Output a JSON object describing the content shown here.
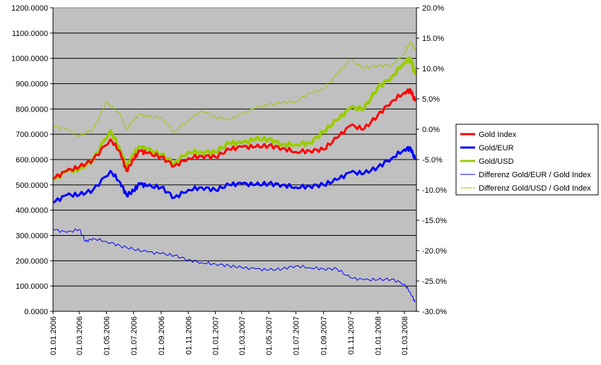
{
  "chart_data": {
    "type": "line",
    "title": "",
    "xlabel": "",
    "ylabel": "",
    "y2label": "",
    "ylim": [
      0,
      1200
    ],
    "y2lim": [
      -30,
      20
    ],
    "grid": true,
    "legend_position": "right",
    "x_ticks": [
      "01.01.2006",
      "01.03.2006",
      "01.05.2006",
      "01.07.2006",
      "01.09.2006",
      "01.11.2006",
      "01.01.2007",
      "01.03.2007",
      "01.05.2007",
      "01.07.2007",
      "01.09.2007",
      "01.11.2007",
      "01.01.2008",
      "01.03.2008"
    ],
    "y_ticks": [
      "0.0000",
      "100.0000",
      "200.0000",
      "300.0000",
      "400.0000",
      "500.0000",
      "600.0000",
      "700.0000",
      "800.0000",
      "900.0000",
      "1000.0000",
      "1100.0000",
      "1200.0000"
    ],
    "y2_ticks": [
      "-30.0%",
      "-25.0%",
      "-20.0%",
      "-15.0%",
      "-10.0%",
      "-5.0%",
      "0.0%",
      "5.0%",
      "10.0%",
      "15.0%",
      "20.0%"
    ],
    "series": [
      {
        "name": "Gold Index",
        "axis": "left",
        "color": "#ff0000",
        "width": 3,
        "points": [
          [
            "2006-01-01",
            525
          ],
          [
            "2006-02-01",
            555
          ],
          [
            "2006-03-01",
            570
          ],
          [
            "2006-04-01",
            600
          ],
          [
            "2006-05-10",
            680
          ],
          [
            "2006-06-01",
            630
          ],
          [
            "2006-06-15",
            555
          ],
          [
            "2006-07-01",
            600
          ],
          [
            "2006-07-15",
            635
          ],
          [
            "2006-08-01",
            625
          ],
          [
            "2006-09-01",
            610
          ],
          [
            "2006-10-01",
            575
          ],
          [
            "2006-11-01",
            605
          ],
          [
            "2006-12-01",
            615
          ],
          [
            "2007-01-01",
            610
          ],
          [
            "2007-02-01",
            640
          ],
          [
            "2007-03-01",
            650
          ],
          [
            "2007-04-01",
            650
          ],
          [
            "2007-05-01",
            655
          ],
          [
            "2007-06-01",
            645
          ],
          [
            "2007-07-01",
            630
          ],
          [
            "2007-08-01",
            635
          ],
          [
            "2007-09-01",
            640
          ],
          [
            "2007-10-01",
            685
          ],
          [
            "2007-11-01",
            735
          ],
          [
            "2007-12-01",
            720
          ],
          [
            "2008-01-01",
            775
          ],
          [
            "2008-02-01",
            830
          ],
          [
            "2008-03-01",
            865
          ],
          [
            "2008-03-15",
            875
          ],
          [
            "2008-03-25",
            830
          ]
        ]
      },
      {
        "name": "Gold/EUR",
        "axis": "left",
        "color": "#0000ff",
        "width": 3,
        "points": [
          [
            "2006-01-01",
            430
          ],
          [
            "2006-02-01",
            460
          ],
          [
            "2006-03-01",
            460
          ],
          [
            "2006-04-01",
            480
          ],
          [
            "2006-05-10",
            555
          ],
          [
            "2006-06-01",
            510
          ],
          [
            "2006-06-15",
            460
          ],
          [
            "2006-07-01",
            475
          ],
          [
            "2006-07-15",
            505
          ],
          [
            "2006-08-01",
            495
          ],
          [
            "2006-09-01",
            490
          ],
          [
            "2006-10-01",
            450
          ],
          [
            "2006-11-01",
            480
          ],
          [
            "2006-12-01",
            490
          ],
          [
            "2007-01-01",
            480
          ],
          [
            "2007-02-01",
            500
          ],
          [
            "2007-03-01",
            505
          ],
          [
            "2007-04-01",
            500
          ],
          [
            "2007-05-01",
            505
          ],
          [
            "2007-06-01",
            500
          ],
          [
            "2007-07-01",
            490
          ],
          [
            "2007-08-01",
            495
          ],
          [
            "2007-09-01",
            500
          ],
          [
            "2007-10-01",
            520
          ],
          [
            "2007-11-01",
            550
          ],
          [
            "2007-12-01",
            545
          ],
          [
            "2008-01-01",
            570
          ],
          [
            "2008-02-01",
            605
          ],
          [
            "2008-03-01",
            640
          ],
          [
            "2008-03-15",
            645
          ],
          [
            "2008-03-25",
            600
          ]
        ]
      },
      {
        "name": "Gold/USD",
        "axis": "left",
        "color": "#99cc00",
        "width": 4,
        "points": [
          [
            "2006-01-01",
            520
          ],
          [
            "2006-02-01",
            555
          ],
          [
            "2006-03-01",
            560
          ],
          [
            "2006-04-01",
            600
          ],
          [
            "2006-05-10",
            715
          ],
          [
            "2006-06-01",
            640
          ],
          [
            "2006-06-15",
            570
          ],
          [
            "2006-07-01",
            620
          ],
          [
            "2006-07-15",
            650
          ],
          [
            "2006-08-01",
            640
          ],
          [
            "2006-09-01",
            620
          ],
          [
            "2006-10-01",
            585
          ],
          [
            "2006-11-01",
            630
          ],
          [
            "2006-12-01",
            630
          ],
          [
            "2007-01-01",
            630
          ],
          [
            "2007-02-01",
            665
          ],
          [
            "2007-03-01",
            665
          ],
          [
            "2007-04-01",
            680
          ],
          [
            "2007-05-01",
            680
          ],
          [
            "2007-06-01",
            660
          ],
          [
            "2007-07-01",
            660
          ],
          [
            "2007-08-01",
            665
          ],
          [
            "2007-09-01",
            710
          ],
          [
            "2007-10-01",
            755
          ],
          [
            "2007-11-01",
            805
          ],
          [
            "2007-12-01",
            800
          ],
          [
            "2008-01-01",
            885
          ],
          [
            "2008-02-01",
            925
          ],
          [
            "2008-03-01",
            985
          ],
          [
            "2008-03-15",
            1000
          ],
          [
            "2008-03-25",
            935
          ]
        ]
      },
      {
        "name": "Differenz Gold/EUR / Gold Index",
        "axis": "right",
        "color": "#0000ff",
        "width": 1,
        "points": [
          [
            "2006-01-01",
            -16.5
          ],
          [
            "2006-02-01",
            -17
          ],
          [
            "2006-03-01",
            -16.5
          ],
          [
            "2006-03-15",
            -18.5
          ],
          [
            "2006-04-01",
            -18
          ],
          [
            "2006-05-01",
            -18.5
          ],
          [
            "2006-06-01",
            -19.2
          ],
          [
            "2006-07-01",
            -19.8
          ],
          [
            "2006-08-01",
            -20.2
          ],
          [
            "2006-09-01",
            -20.5
          ],
          [
            "2006-10-01",
            -20.8
          ],
          [
            "2006-11-01",
            -21.5
          ],
          [
            "2006-12-01",
            -22
          ],
          [
            "2007-01-01",
            -22.2
          ],
          [
            "2007-02-01",
            -22.5
          ],
          [
            "2007-03-01",
            -22.8
          ],
          [
            "2007-04-01",
            -23
          ],
          [
            "2007-05-01",
            -23.2
          ],
          [
            "2007-06-01",
            -23.0
          ],
          [
            "2007-07-01",
            -22.5
          ],
          [
            "2007-08-01",
            -22.8
          ],
          [
            "2007-09-01",
            -23
          ],
          [
            "2007-10-01",
            -23
          ],
          [
            "2007-11-01",
            -24.5
          ],
          [
            "2007-12-01",
            -24.8
          ],
          [
            "2008-01-01",
            -24.8
          ],
          [
            "2008-02-01",
            -24.7
          ],
          [
            "2008-03-01",
            -25.5
          ],
          [
            "2008-03-15",
            -27
          ],
          [
            "2008-03-25",
            -28.5
          ]
        ]
      },
      {
        "name": "Differenz Gold/USD / Gold Index",
        "axis": "right",
        "color": "#99cc00",
        "width": 1,
        "points": [
          [
            "2006-01-01",
            0.5
          ],
          [
            "2006-02-01",
            0.0
          ],
          [
            "2006-03-01",
            -1.2
          ],
          [
            "2006-04-01",
            0.0
          ],
          [
            "2006-05-01",
            4.5
          ],
          [
            "2006-06-01",
            2.5
          ],
          [
            "2006-06-15",
            0.0
          ],
          [
            "2006-07-01",
            1.5
          ],
          [
            "2006-07-15",
            2.5
          ],
          [
            "2006-08-01",
            2.0
          ],
          [
            "2006-09-01",
            2.0
          ],
          [
            "2006-10-01",
            -0.5
          ],
          [
            "2006-11-01",
            1.5
          ],
          [
            "2006-12-01",
            3.0
          ],
          [
            "2007-01-01",
            2.0
          ],
          [
            "2007-02-01",
            1.5
          ],
          [
            "2007-03-01",
            2.5
          ],
          [
            "2007-04-01",
            3.5
          ],
          [
            "2007-05-01",
            4.0
          ],
          [
            "2007-06-01",
            4.5
          ],
          [
            "2007-07-01",
            4.5
          ],
          [
            "2007-08-01",
            6.0
          ],
          [
            "2007-09-01",
            6.5
          ],
          [
            "2007-10-01",
            9.0
          ],
          [
            "2007-11-01",
            11.5
          ],
          [
            "2007-12-01",
            10.0
          ],
          [
            "2008-01-01",
            10.5
          ],
          [
            "2008-02-01",
            10.5
          ],
          [
            "2008-03-01",
            12.5
          ],
          [
            "2008-03-15",
            14.5
          ],
          [
            "2008-03-25",
            13.0
          ]
        ]
      }
    ]
  }
}
